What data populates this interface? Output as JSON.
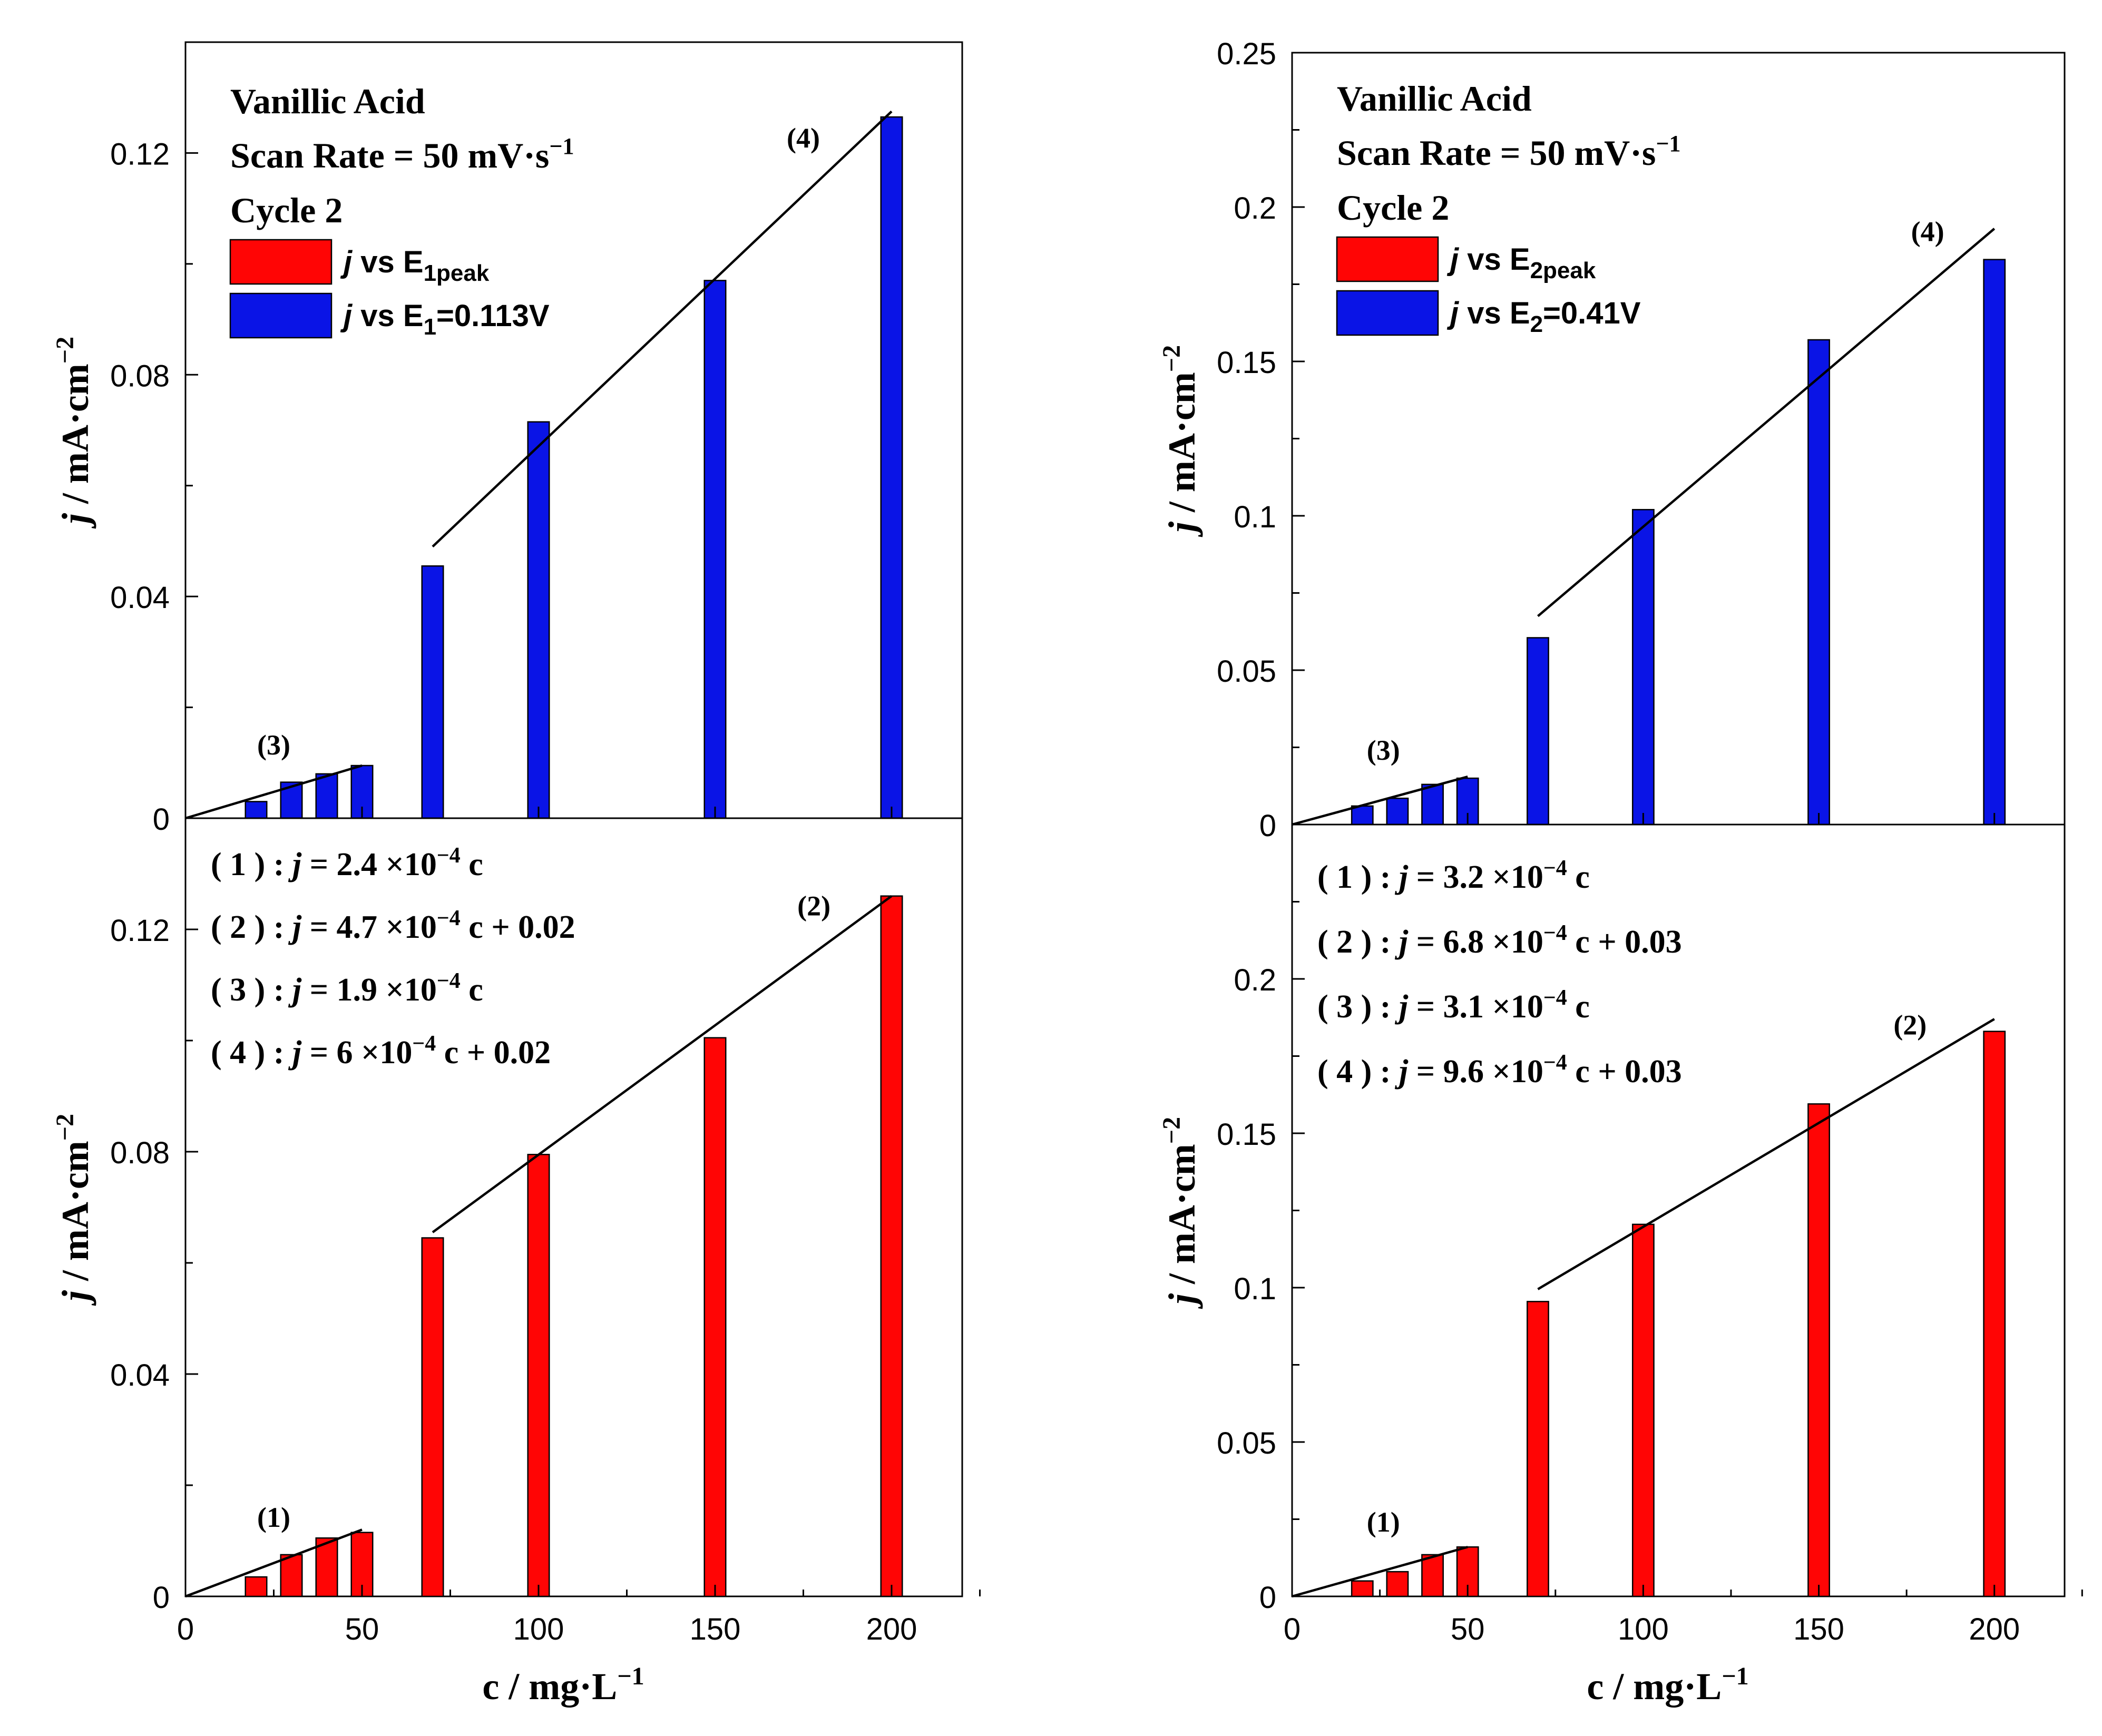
{
  "colors": {
    "blue": "#0a14e6",
    "red": "#ff0505",
    "line": "#000000",
    "bar_stroke": "#000000"
  },
  "chart_data": [
    {
      "type": "bar",
      "id": "left",
      "x_values": [
        20,
        30,
        40,
        50,
        70,
        100,
        150,
        200
      ],
      "xlabel": "c / mg·L",
      "xlabel_sup": "−1",
      "ylabel_sym": "j",
      "ylabel": " / mA·cm",
      "ylabel_sup": "−2",
      "xlim": [
        0,
        220
      ],
      "xticks": [
        0,
        50,
        100,
        150,
        200
      ],
      "xtick_labels": [
        "0",
        "50",
        "100",
        "150",
        "200"
      ],
      "top": {
        "title": "Vanillic Acid",
        "scan_rate": "Scan Rate = 50 mV·s",
        "scan_rate_sup": "−1",
        "cycle": "Cycle 2",
        "ylim": [
          0,
          0.14
        ],
        "yticks": [
          0,
          0.04,
          0.08,
          0.12
        ],
        "ytick_labels": [
          "0",
          "0.04",
          "0.08",
          "0.12"
        ],
        "minor_yticks": [
          0.02,
          0.06,
          0.1
        ],
        "series": [
          {
            "name_sym": "j",
            "name_text": " vs E",
            "name_sub": "1",
            "name_suffix": "=0.113V",
            "color": "blue",
            "values": [
              0.003,
              0.0065,
              0.008,
              0.0095,
              0.0455,
              0.0715,
              0.097,
              0.1265
            ]
          }
        ],
        "fits": [
          {
            "label": "(3)",
            "x0": 0,
            "y0": 0,
            "x1": 50,
            "y1": 0.0095,
            "label_x": 25,
            "label_y": 0.0115
          },
          {
            "label": "(4)",
            "x0": 70,
            "y0": 0.049,
            "x1": 200,
            "y1": 0.1275,
            "label_x": 175,
            "label_y": 0.121
          }
        ]
      },
      "bottom": {
        "ylim": [
          0,
          0.14
        ],
        "yticks": [
          0,
          0.04,
          0.08,
          0.12
        ],
        "ytick_labels": [
          "0",
          "0.04",
          "0.08",
          "0.12"
        ],
        "minor_yticks": [
          0.02,
          0.06,
          0.1
        ],
        "series": [
          {
            "name_sym": "j",
            "name_text": " vs E",
            "name_sub": "1peak",
            "name_suffix": "",
            "color": "red",
            "values": [
              0.0035,
              0.0075,
              0.0105,
              0.0115,
              0.0645,
              0.0795,
              0.1005,
              0.126
            ]
          }
        ],
        "fits": [
          {
            "label": "(1)",
            "x0": 0,
            "y0": 0,
            "x1": 50,
            "y1": 0.012,
            "label_x": 25,
            "label_y": 0.0125
          },
          {
            "label": "(2)",
            "x0": 70,
            "y0": 0.0655,
            "x1": 200,
            "y1": 0.126,
            "label_x": 178,
            "label_y": 0.1225
          }
        ],
        "equations": [
          {
            "prefix": "( 1 ) : ",
            "sym": "j",
            "body": " = 2.4 ×10",
            "sup": "−4",
            "tail": " c"
          },
          {
            "prefix": "( 2 ) : ",
            "sym": "j",
            "body": " = 4.7 ×10",
            "sup": "−4",
            "tail": " c + 0.02"
          },
          {
            "prefix": "( 3 ) : ",
            "sym": "j",
            "body": " = 1.9 ×10",
            "sup": "−4",
            "tail": " c"
          },
          {
            "prefix": "( 4 ) : ",
            "sym": "j",
            "body": " = 6 ×10",
            "sup": "−4",
            "tail": " c + 0.02"
          }
        ]
      }
    },
    {
      "type": "bar",
      "id": "right",
      "x_values": [
        20,
        30,
        40,
        50,
        70,
        100,
        150,
        200
      ],
      "xlabel": "c / mg·L",
      "xlabel_sup": "−1",
      "ylabel_sym": "j",
      "ylabel": " / mA·cm",
      "ylabel_sup": "−2",
      "xlim": [
        0,
        220
      ],
      "xticks": [
        0,
        50,
        100,
        150,
        200
      ],
      "xtick_labels": [
        "0",
        "50",
        "100",
        "150",
        "200"
      ],
      "top": {
        "title": "Vanillic Acid",
        "scan_rate": "Scan Rate = 50 mV·s",
        "scan_rate_sup": "−1",
        "cycle": "Cycle 2",
        "ylim": [
          0,
          0.25
        ],
        "yticks": [
          0,
          0.05,
          0.1,
          0.15,
          0.2,
          0.25
        ],
        "ytick_labels": [
          "0",
          "0.05",
          "0.1",
          "0.15",
          "0.2",
          "0.25"
        ],
        "minor_yticks": [
          0.025,
          0.075,
          0.125,
          0.175,
          0.225
        ],
        "series": [
          {
            "name_sym": "j",
            "name_text": " vs E",
            "name_sub": "2",
            "name_suffix": "=0.41V",
            "color": "blue",
            "values": [
              0.006,
              0.0085,
              0.013,
              0.015,
              0.0605,
              0.102,
              0.157,
              0.183
            ]
          }
        ],
        "fits": [
          {
            "label": "(3)",
            "x0": 0,
            "y0": 0,
            "x1": 50,
            "y1": 0.0155,
            "label_x": 26,
            "label_y": 0.021
          },
          {
            "label": "(4)",
            "x0": 70,
            "y0": 0.0675,
            "x1": 200,
            "y1": 0.193,
            "label_x": 181,
            "label_y": 0.189
          }
        ]
      },
      "bottom": {
        "ylim": [
          0,
          0.25
        ],
        "yticks": [
          0,
          0.05,
          0.1,
          0.15,
          0.2
        ],
        "ytick_labels": [
          "0",
          "0.05",
          "0.1",
          "0.15",
          "0.2"
        ],
        "minor_yticks": [
          0.025,
          0.075,
          0.125,
          0.175,
          0.225
        ],
        "series": [
          {
            "name_sym": "j",
            "name_text": " vs E",
            "name_sub": "2peak",
            "name_suffix": "",
            "color": "red",
            "values": [
              0.005,
              0.008,
              0.0135,
              0.016,
              0.0955,
              0.1205,
              0.1595,
              0.183
            ]
          }
        ],
        "fits": [
          {
            "label": "(1)",
            "x0": 0,
            "y0": 0,
            "x1": 50,
            "y1": 0.016,
            "label_x": 26,
            "label_y": 0.021
          },
          {
            "label": "(2)",
            "x0": 70,
            "y0": 0.0995,
            "x1": 200,
            "y1": 0.187,
            "label_x": 176,
            "label_y": 0.182
          }
        ],
        "equations": [
          {
            "prefix": "( 1 ) : ",
            "sym": "j",
            "body": " = 3.2 ×10",
            "sup": "−4",
            "tail": " c"
          },
          {
            "prefix": "( 2 ) : ",
            "sym": "j",
            "body": " = 6.8 ×10",
            "sup": "−4",
            "tail": " c + 0.03"
          },
          {
            "prefix": "( 3 ) : ",
            "sym": "j",
            "body": " = 3.1 ×10",
            "sup": "−4",
            "tail": " c"
          },
          {
            "prefix": "( 4 ) : ",
            "sym": "j",
            "body": " = 9.6 ×10",
            "sup": "−4",
            "tail": " c + 0.03"
          }
        ]
      }
    }
  ]
}
